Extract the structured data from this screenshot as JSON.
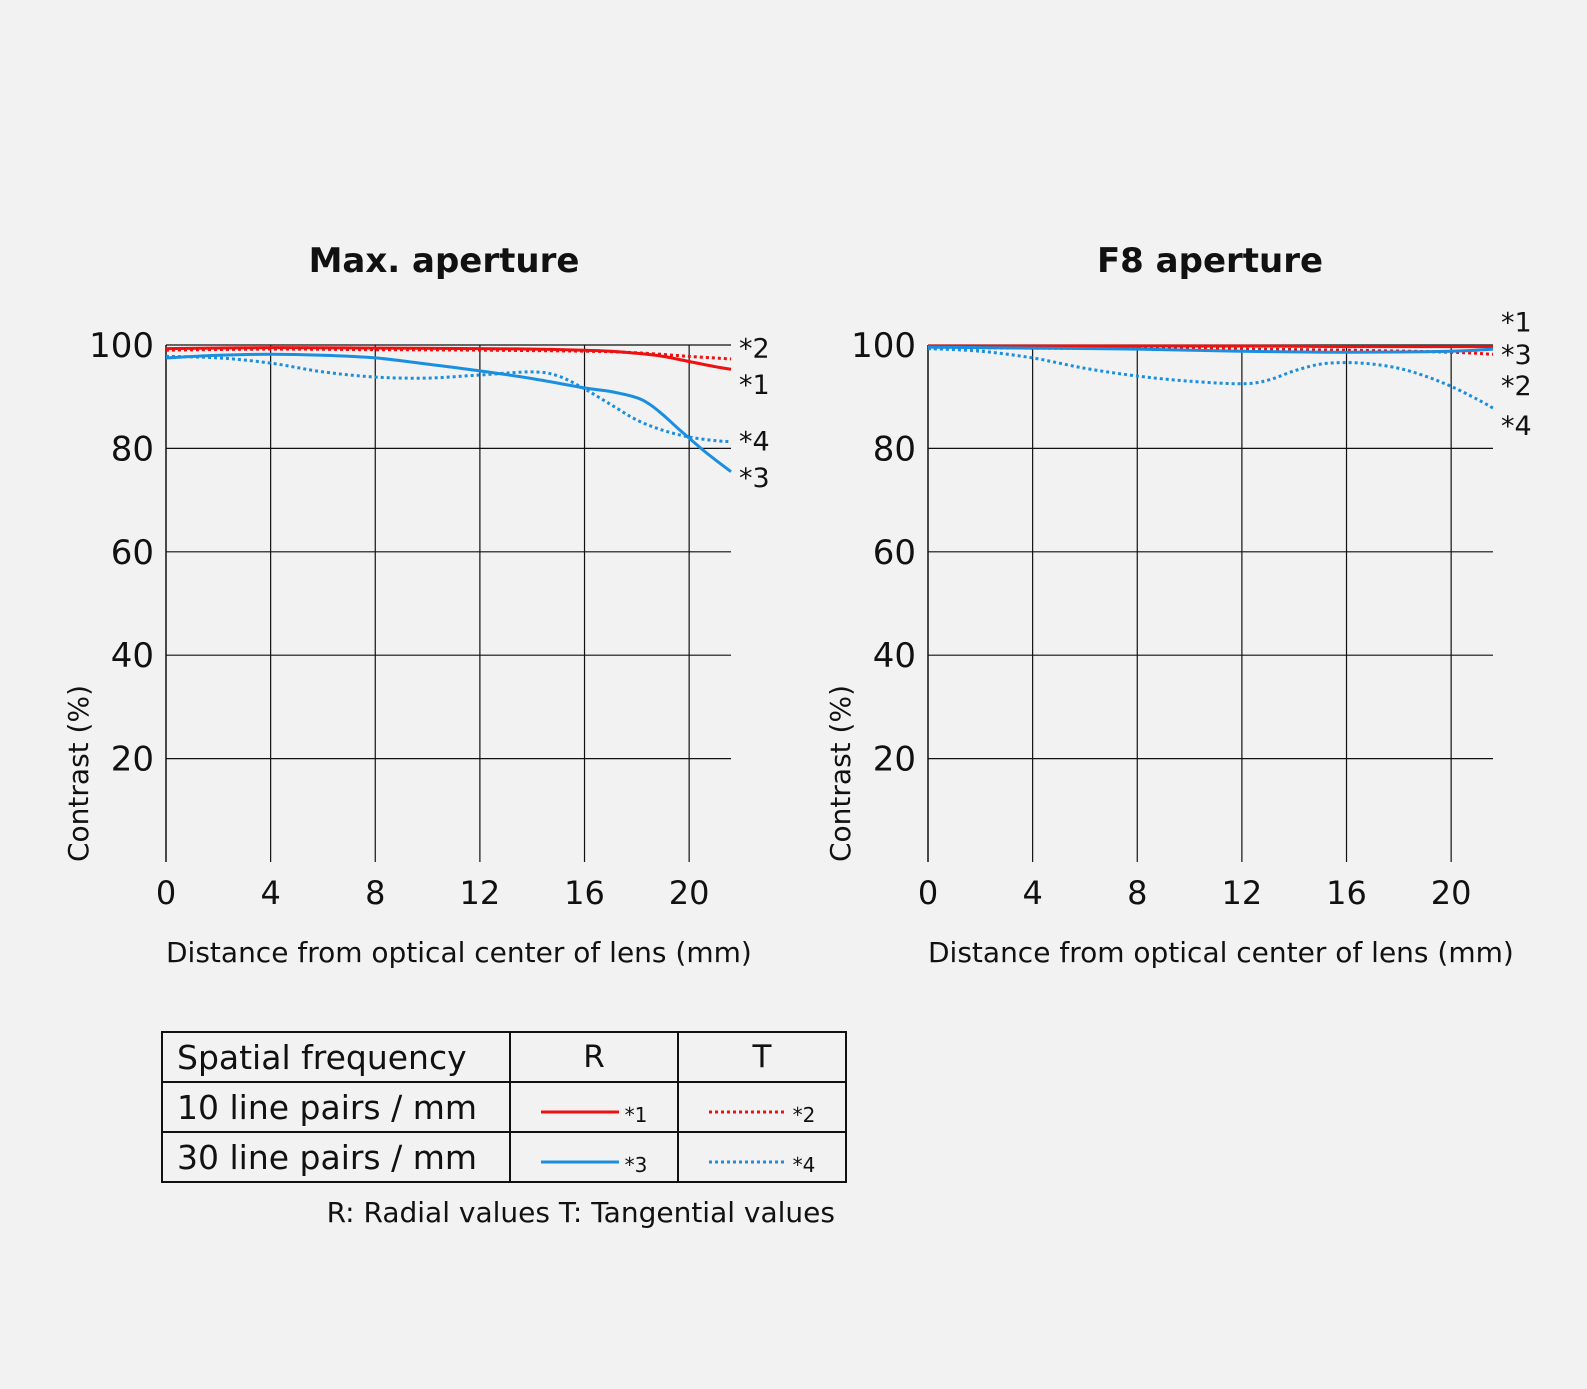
{
  "chart_data": [
    {
      "type": "line",
      "title": "Max. aperture",
      "xlabel": "Distance from optical center of lens (mm)",
      "ylabel": "Contrast (%)",
      "xlim": [
        0,
        21.6
      ],
      "ylim": [
        0,
        100
      ],
      "xticks": [
        0,
        4,
        8,
        12,
        16,
        20
      ],
      "yticks": [
        20,
        40,
        60,
        80,
        100
      ],
      "grid": true,
      "series": [
        {
          "name": "*1",
          "color": "#ee1111",
          "style": "solid",
          "label_y": 92.5,
          "x": [
            0,
            4,
            8,
            12,
            14,
            16,
            17,
            18,
            19,
            20,
            21,
            21.6
          ],
          "y": [
            99.3,
            99.5,
            99.4,
            99.3,
            99.2,
            99.0,
            98.8,
            98.4,
            97.8,
            96.8,
            95.8,
            95.3
          ]
        },
        {
          "name": "*2",
          "color": "#ee1111",
          "style": "dotted",
          "label_y": 99.5,
          "x": [
            0,
            4,
            8,
            12,
            16,
            18,
            20,
            21.6
          ],
          "y": [
            99.0,
            99.2,
            99.1,
            99.0,
            98.8,
            98.5,
            97.8,
            97.3
          ]
        },
        {
          "name": "*3",
          "color": "#1a8fe0",
          "style": "solid",
          "label_y": 74.5,
          "x": [
            0,
            2,
            4,
            6,
            8,
            10,
            12,
            14,
            16,
            17,
            18,
            18.5,
            19,
            19.5,
            20,
            20.5,
            21,
            21.6
          ],
          "y": [
            97.5,
            98.0,
            98.2,
            98.0,
            97.5,
            96.3,
            95.0,
            93.5,
            91.7,
            91.0,
            89.8,
            88.5,
            86.5,
            84.2,
            82.0,
            79.8,
            77.8,
            75.5
          ]
        },
        {
          "name": "*4",
          "color": "#1a8fe0",
          "style": "dotted",
          "label_y": 81.5,
          "x": [
            0,
            2,
            4,
            6,
            8,
            10,
            12,
            14,
            15,
            16,
            17,
            18,
            19,
            20,
            21,
            21.6
          ],
          "y": [
            97.8,
            97.5,
            96.5,
            94.8,
            93.8,
            93.6,
            94.2,
            94.8,
            94.0,
            91.5,
            88.5,
            85.5,
            83.5,
            82.2,
            81.5,
            81.3
          ]
        }
      ]
    },
    {
      "type": "line",
      "title": "F8 aperture",
      "xlabel": "Distance from optical center of lens (mm)",
      "ylabel": "Contrast (%)",
      "xlim": [
        0,
        21.6
      ],
      "ylim": [
        0,
        100
      ],
      "xticks": [
        0,
        4,
        8,
        12,
        16,
        20
      ],
      "yticks": [
        20,
        40,
        60,
        80,
        100
      ],
      "grid": true,
      "series": [
        {
          "name": "*1",
          "color": "#ee1111",
          "style": "solid",
          "label_y": 104.5,
          "x": [
            0,
            4,
            8,
            12,
            16,
            20,
            21.6
          ],
          "y": [
            99.8,
            99.8,
            99.8,
            99.8,
            99.7,
            99.7,
            99.7
          ]
        },
        {
          "name": "*2",
          "color": "#ee1111",
          "style": "dotted",
          "label_y": 92.3,
          "x": [
            0,
            4,
            8,
            12,
            16,
            20,
            21.6
          ],
          "y": [
            99.5,
            99.4,
            99.3,
            99.2,
            99.0,
            98.6,
            98.2
          ]
        },
        {
          "name": "*3",
          "color": "#1a8fe0",
          "style": "solid",
          "label_y": 98.3,
          "x": [
            0,
            4,
            8,
            12,
            16,
            20,
            21.6
          ],
          "y": [
            99.6,
            99.4,
            99.2,
            98.8,
            98.6,
            98.8,
            99.2
          ]
        },
        {
          "name": "*4",
          "color": "#1a8fe0",
          "style": "dotted",
          "label_y": 84.5,
          "x": [
            0,
            2,
            4,
            6,
            8,
            10,
            12,
            13,
            14,
            15,
            16,
            17,
            18,
            19,
            20,
            21,
            21.6
          ],
          "y": [
            99.3,
            98.8,
            97.5,
            95.5,
            94.0,
            93.0,
            92.5,
            93.2,
            95.0,
            96.3,
            96.6,
            96.3,
            95.5,
            94.0,
            92.0,
            89.5,
            87.8
          ]
        }
      ]
    }
  ],
  "legend_table": {
    "headers": [
      "Spatial frequency",
      "R",
      "T"
    ],
    "rows": [
      {
        "label": "10 line pairs / mm",
        "r_mark": "*1",
        "t_mark": "*2",
        "color": "#ee1111"
      },
      {
        "label": "30 line pairs / mm",
        "r_mark": "*3",
        "t_mark": "*4",
        "color": "#1a8fe0"
      }
    ],
    "note": "R: Radial values  T: Tangential values"
  }
}
